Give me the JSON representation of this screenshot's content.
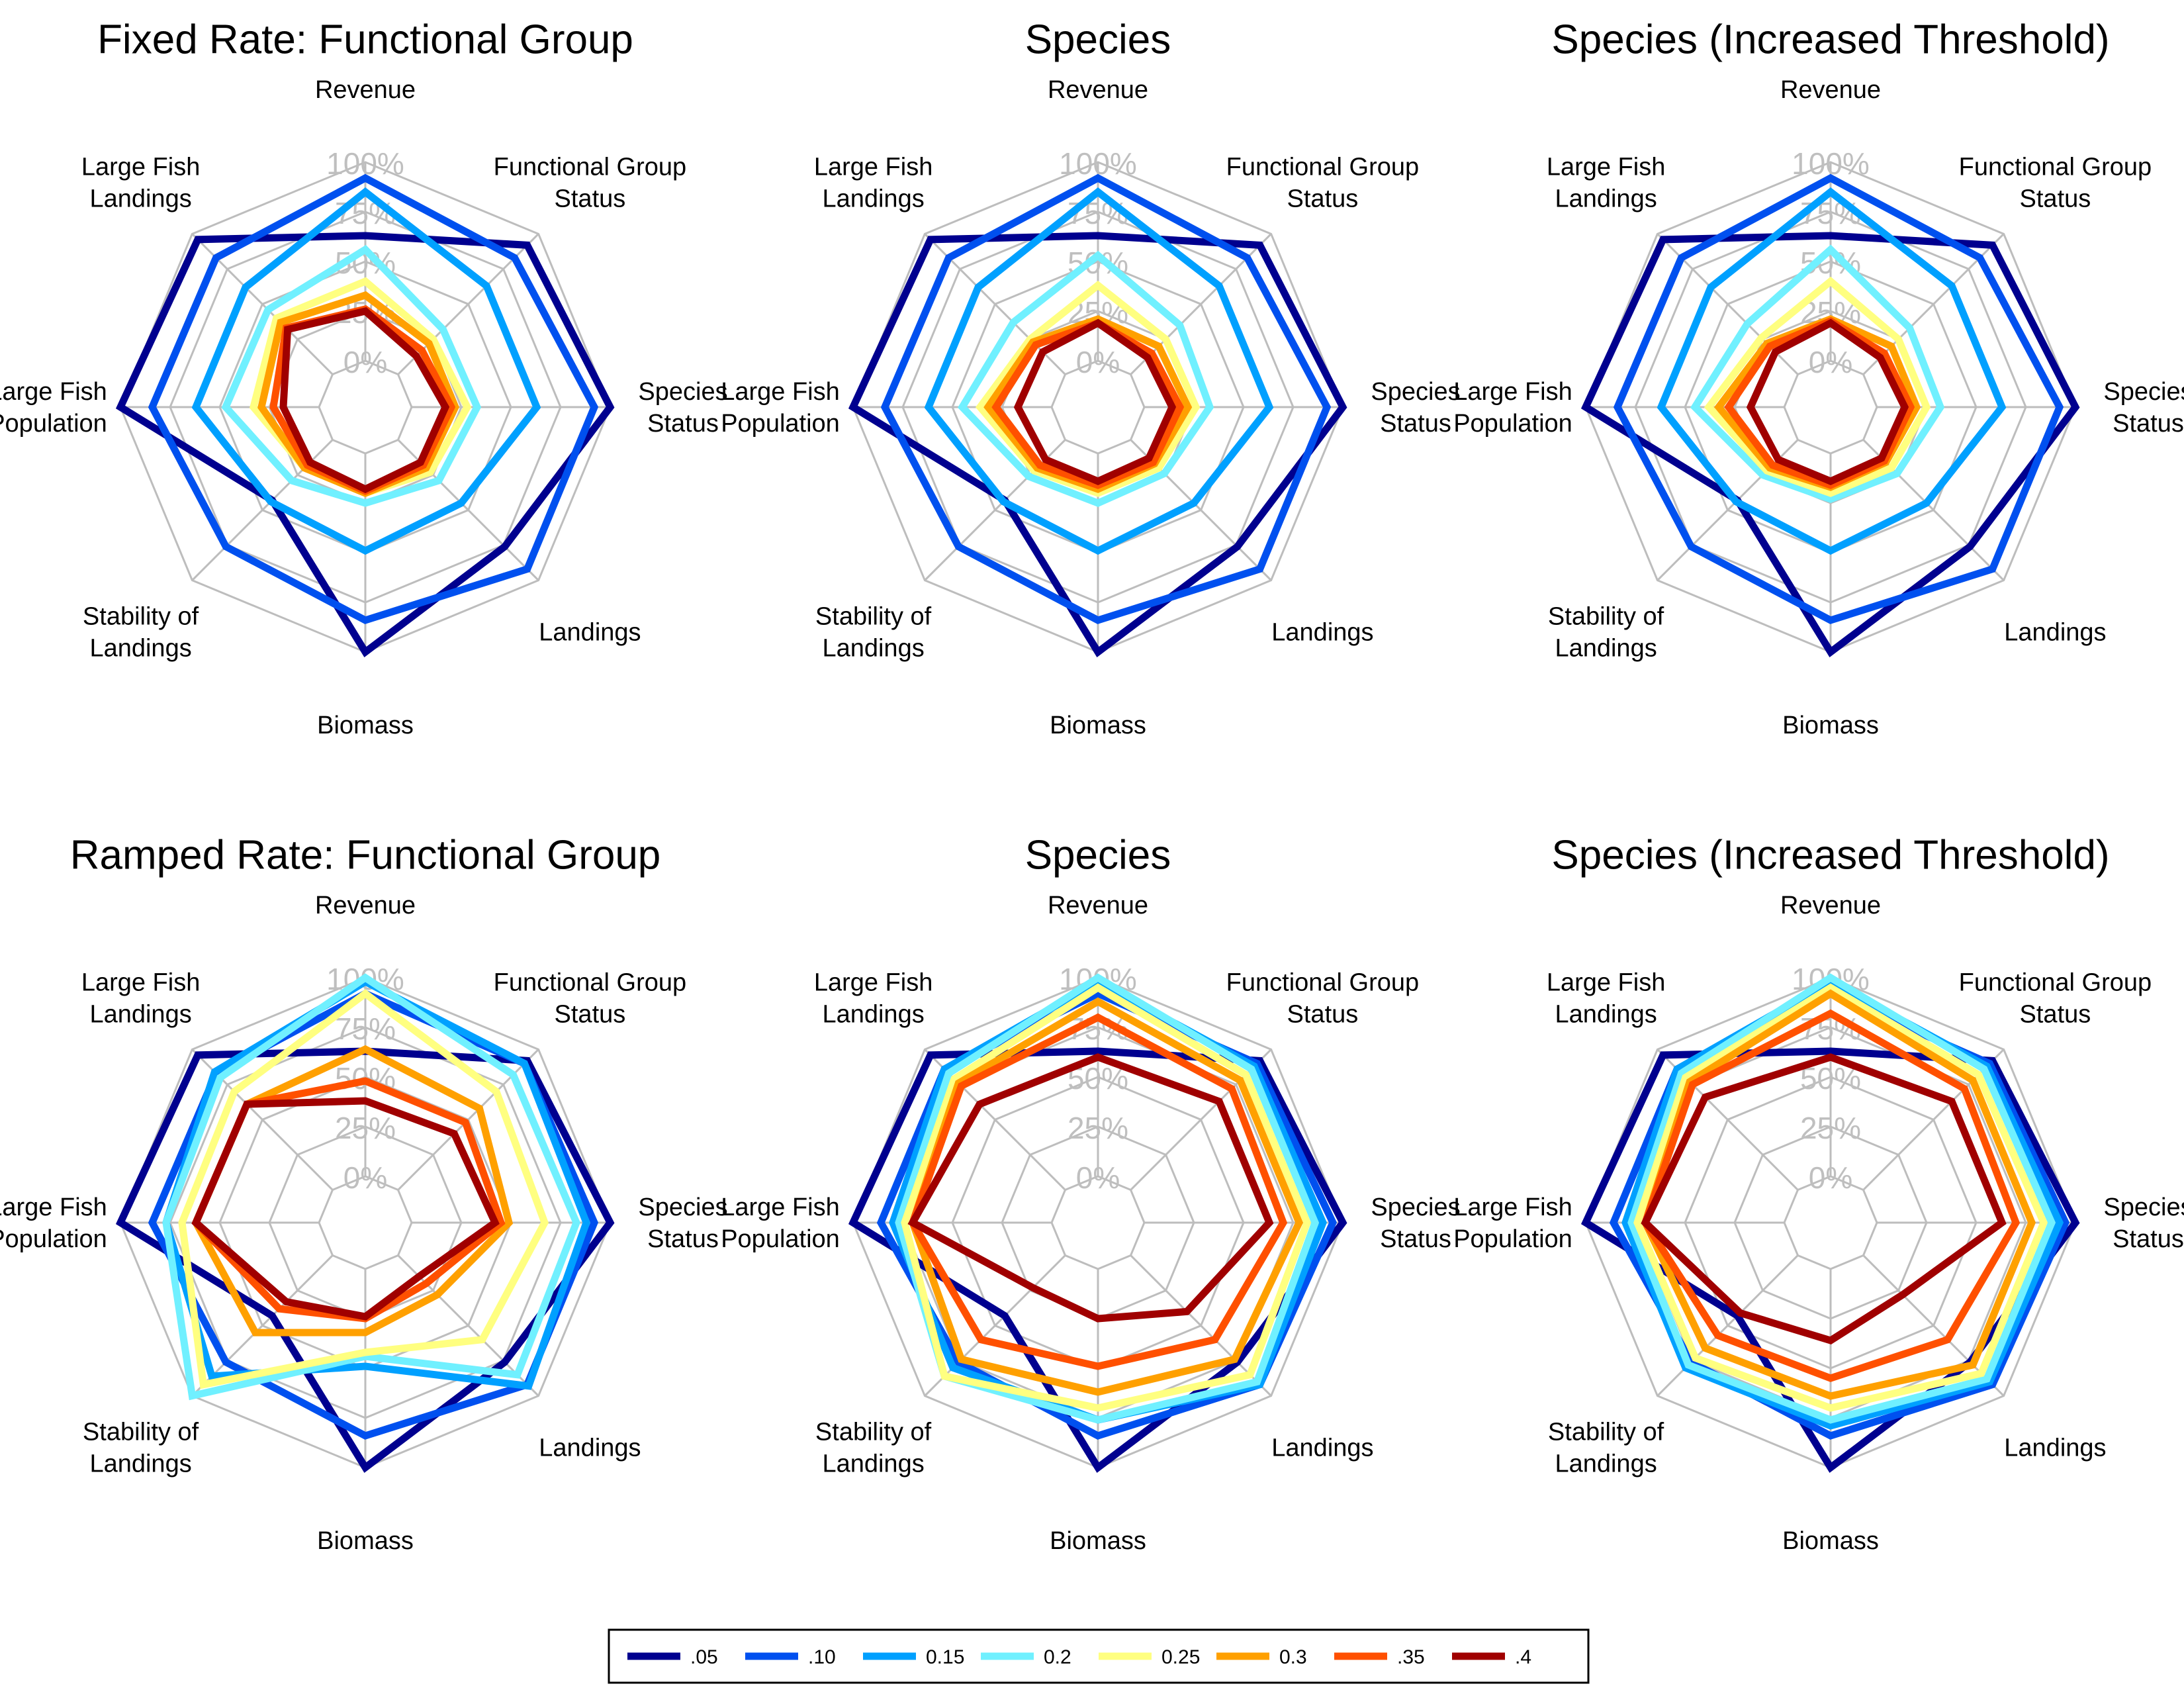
{
  "chart_data": {
    "type": "radar",
    "axes": [
      "Revenue",
      "Functional Group Status",
      "Species Status",
      "Landings",
      "Biomass",
      "Stability of Landings",
      "Large Fish Population",
      "Large Fish Landings"
    ],
    "axis_labels": [
      [
        "Revenue"
      ],
      [
        "Functional Group",
        "Status"
      ],
      [
        "Species",
        "Status"
      ],
      [
        "Landings"
      ],
      [
        "Biomass"
      ],
      [
        "Stability of",
        "Landings"
      ],
      [
        "Large Fish",
        "Population"
      ],
      [
        "Large Fish",
        "Landings"
      ]
    ],
    "tick_labels": [
      "0%",
      "25%",
      "50%",
      "75%",
      "100%"
    ],
    "rlim": [
      0,
      100
    ],
    "grid": true,
    "legend": {
      "position": "bottom",
      "entries": [
        {
          "label": ".05",
          "color": "#00008f"
        },
        {
          "label": ".10",
          "color": "#0050ef"
        },
        {
          "label": "0.15",
          "color": "#00a0ff"
        },
        {
          "label": "0.2",
          "color": "#70f0ff"
        },
        {
          "label": "0.25",
          "color": "#ffff80"
        },
        {
          "label": "0.3",
          "color": "#ffa000"
        },
        {
          "label": ".35",
          "color": "#ff5000"
        },
        {
          "label": ".4",
          "color": "#a00000"
        }
      ]
    },
    "panels": [
      {
        "title": "Fixed Rate: Functional Group",
        "series": [
          {
            "values": [
              63,
              92,
              100,
              76,
              100,
              43,
              100,
              96
            ]
          },
          {
            "values": [
              92,
              83,
              92,
              92,
              84,
              76,
              84,
              83
            ]
          },
          {
            "values": [
              85,
              63,
              63,
              45,
              49,
              44,
              62,
              62
            ]
          },
          {
            "values": [
              56,
              32,
              33,
              29,
              25,
              29,
              47,
              46
            ]
          },
          {
            "values": [
              40,
              25,
              28,
              23,
              20,
              20,
              33,
              40
            ]
          },
          {
            "values": [
              33,
              22,
              22,
              20,
              20,
              20,
              29,
              37
            ]
          },
          {
            "values": [
              26,
              17,
              20,
              18,
              19,
              18,
              23,
              33
            ]
          },
          {
            "values": [
              25,
              13,
              17,
              16,
              18,
              16,
              18,
              32
            ]
          }
        ]
      },
      {
        "title": "Species",
        "series": [
          {
            "values": [
              63,
              92,
              100,
              76,
              100,
              43,
              100,
              96
            ]
          },
          {
            "values": [
              92,
              83,
              92,
              92,
              84,
              76,
              84,
              83
            ]
          },
          {
            "values": [
              85,
              63,
              63,
              45,
              49,
              44,
              62,
              62
            ]
          },
          {
            "values": [
              53,
              35,
              33,
              24,
              25,
              26,
              45,
              37
            ]
          },
          {
            "values": [
              38,
              25,
              26,
              20,
              20,
              22,
              36,
              25
            ]
          },
          {
            "values": [
              21,
              20,
              22,
              17,
              18,
              20,
              32,
              23
            ]
          },
          {
            "values": [
              19,
              15,
              18,
              16,
              16,
              18,
              28,
              21
            ]
          },
          {
            "values": [
              19,
              12,
              14,
              13,
              14,
              14,
              17,
              16
            ]
          }
        ]
      },
      {
        "title": "Species (Increased Threshold)",
        "series": [
          {
            "values": [
              63,
              92,
              100,
              76,
              100,
              43,
              100,
              96
            ]
          },
          {
            "values": [
              92,
              83,
              92,
              92,
              84,
              76,
              84,
              83
            ]
          },
          {
            "values": [
              85,
              63,
              63,
              45,
              49,
              44,
              62,
              62
            ]
          },
          {
            "values": [
              56,
              33,
              32,
              24,
              23,
              25,
              45,
              36
            ]
          },
          {
            "values": [
              40,
              25,
              25,
              20,
              20,
              22,
              38,
              26
            ]
          },
          {
            "values": [
              21,
              20,
              20,
              16,
              17,
              20,
              33,
              22
            ]
          },
          {
            "values": [
              20,
              15,
              17,
              15,
              16,
              18,
              28,
              20
            ]
          },
          {
            "values": [
              19,
              12,
              14,
              13,
              14,
              14,
              17,
              16
            ]
          }
        ]
      },
      {
        "title": "Ramped Rate: Functional Group",
        "series": [
          {
            "values": [
              63,
              92,
              100,
              76,
              100,
              43,
              100,
              96
            ]
          },
          {
            "values": [
              92,
              90,
              92,
              92,
              84,
              76,
              84,
              83
            ]
          },
          {
            "values": [
              98,
              90,
              88,
              93,
              49,
              86,
              77,
              84
            ]
          },
          {
            "values": [
              100,
              82,
              83,
              85,
              44,
              100,
              77,
              80
            ]
          },
          {
            "values": [
              92,
              70,
              67,
              60,
              42,
              92,
              69,
              70
            ]
          },
          {
            "values": [
              64,
              58,
              49,
              28,
              32,
              55,
              62,
              61
            ]
          },
          {
            "values": [
              48,
              48,
              45,
              20,
              25,
              38,
              62,
              61
            ]
          },
          {
            "values": [
              38,
              40,
              42,
              15,
              24,
              33,
              62,
              61
            ]
          }
        ]
      },
      {
        "title": "Species",
        "series": [
          {
            "values": [
              63,
              92,
              100,
              76,
              100,
              43,
              100,
              96
            ]
          },
          {
            "values": [
              92,
              90,
              95,
              92,
              84,
              76,
              86,
              86
            ]
          },
          {
            "values": [
              98,
              88,
              90,
              92,
              76,
              80,
              80,
              86
            ]
          },
          {
            "values": [
              100,
              86,
              86,
              90,
              76,
              86,
              77,
              83
            ]
          },
          {
            "values": [
              95,
              82,
              82,
              85,
              70,
              86,
              74,
              79
            ]
          },
          {
            "values": [
              88,
              78,
              78,
              74,
              62,
              74,
              70,
              76
            ]
          },
          {
            "values": [
              80,
              72,
              70,
              60,
              49,
              60,
              70,
              74
            ]
          },
          {
            "values": [
              60,
              63,
              63,
              40,
              25,
              23,
              70,
              61
            ]
          }
        ]
      },
      {
        "title": "Species (Increased Threshold)",
        "series": [
          {
            "values": [
              63,
              92,
              100,
              76,
              100,
              43,
              100,
              96
            ]
          },
          {
            "values": [
              92,
              90,
              95,
              92,
              84,
              76,
              86,
              86
            ]
          },
          {
            "values": [
              98,
              88,
              92,
              90,
              79,
              80,
              80,
              86
            ]
          },
          {
            "values": [
              100,
              86,
              88,
              88,
              76,
              78,
              77,
              83
            ]
          },
          {
            "values": [
              95,
              82,
              84,
              84,
              70,
              73,
              74,
              80
            ]
          },
          {
            "values": [
              92,
              78,
              78,
              78,
              64,
              66,
              70,
              77
            ]
          },
          {
            "values": [
              82,
              72,
              70,
              60,
              55,
              57,
              70,
              75
            ]
          },
          {
            "values": [
              60,
              63,
              63,
              28,
              36,
              41,
              70,
              66
            ]
          }
        ]
      }
    ]
  }
}
